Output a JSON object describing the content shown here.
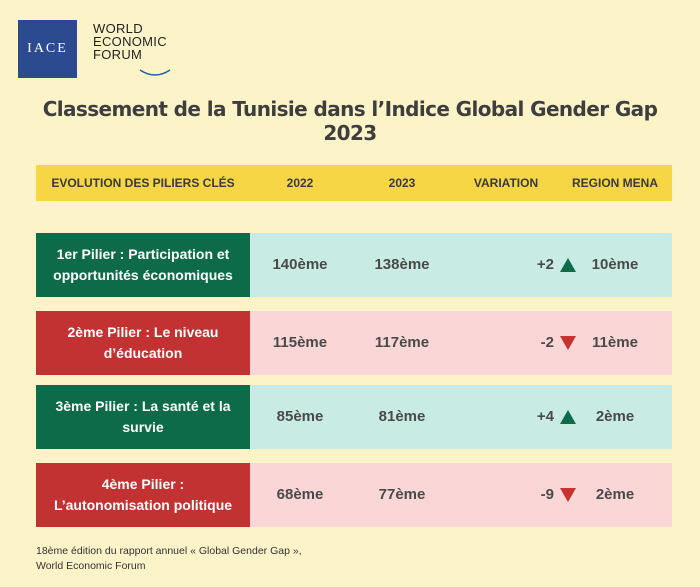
{
  "logos": {
    "iace": "IACE",
    "wef_line1": "WORLD",
    "wef_line2": "ECONOMIC",
    "wef_line3": "FORUM"
  },
  "title": {
    "line1": "Classement de la Tunisie dans l’Indice Global Gender Gap",
    "line2": "2023"
  },
  "table": {
    "headers": {
      "pillar": "EVOLUTION DES PILIERS CLÉS",
      "y2022": "2022",
      "y2023": "2023",
      "variation": "VARIATION",
      "region": "REGION MENA"
    },
    "rows": [
      {
        "pillar_line1": "1er Pilier : Participation et",
        "pillar_line2": "opportunités économiques",
        "y2022": "140ème",
        "y2023": "138ème",
        "variation": "+2",
        "direction": "up",
        "region": "10ème"
      },
      {
        "pillar_line1": "2ème Pilier : Le niveau",
        "pillar_line2": "d’éducation",
        "y2022": "115ème",
        "y2023": "117ème",
        "variation": "-2",
        "direction": "down",
        "region": "11ème"
      },
      {
        "pillar_line1": "3ème Pilier : La santé et la",
        "pillar_line2": "survie",
        "y2022": "85ème",
        "y2023": "81ème",
        "variation": "+4",
        "direction": "up",
        "region": "2ème"
      },
      {
        "pillar_line1": "4ème Pilier :",
        "pillar_line2": "L’autonomisation politique",
        "y2022": "68ème",
        "y2023": "77ème",
        "variation": "-9",
        "direction": "down",
        "region": "2ème"
      }
    ]
  },
  "footer": {
    "line1": "18ème édition du rapport annuel « Global Gender Gap »,",
    "line2": "World Economic Forum"
  },
  "colors": {
    "background": "#fdf3c9",
    "header": "#f6d645",
    "up_dark": "#0e6b4a",
    "up_light": "#c8ebe3",
    "down_dark": "#c23232",
    "down_light": "#fad6d6",
    "arrow_up": "#0e6b4a",
    "arrow_down": "#c8312e"
  }
}
